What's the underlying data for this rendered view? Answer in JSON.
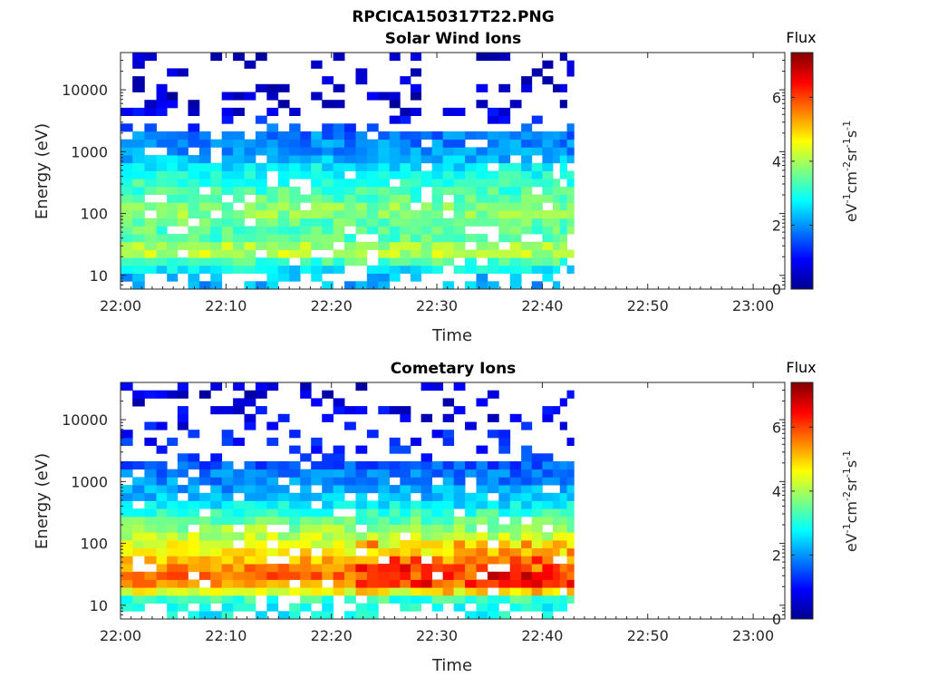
{
  "figure": {
    "title": "RPCICA150317T22.PNG",
    "colormap": "jet"
  },
  "chart_data": [
    {
      "type": "heatmap",
      "title": "Solar Wind Ions",
      "xlabel": "Time",
      "ylabel": "Energy (eV)",
      "y_scale": "log",
      "ylim": [
        6,
        40000
      ],
      "xlim": [
        "22:00",
        "23:03"
      ],
      "x_ticks": [
        "22:00",
        "22:10",
        "22:20",
        "22:30",
        "22:40",
        "22:50",
        "23:00"
      ],
      "y_ticks": [
        "10",
        "100",
        "1000",
        "10000"
      ],
      "colorbar": {
        "title": "Flux",
        "label": "eV-1cm-2sr-1s-1",
        "range": [
          0,
          7.4
        ],
        "ticks": [
          "0",
          "2",
          "4",
          "6"
        ]
      },
      "data_extent_x": [
        "22:00",
        "22:43"
      ],
      "time_bins_start_min": [
        0,
        3.4,
        6.4,
        9.6,
        12.8,
        16,
        19.1,
        22.3,
        25.5,
        28.5,
        31.6,
        34.8,
        38,
        41
      ],
      "energy_profile": [
        {
          "energy_eV": 7,
          "flux": 2.2
        },
        {
          "energy_eV": 10,
          "flux": 2.3
        },
        {
          "energy_eV": 15,
          "flux": 3.0
        },
        {
          "energy_eV": 25,
          "flux": 4.4
        },
        {
          "energy_eV": 40,
          "flux": 3.4
        },
        {
          "energy_eV": 70,
          "flux": 3.4
        },
        {
          "energy_eV": 110,
          "flux": 3.9
        },
        {
          "energy_eV": 180,
          "flux": 3.4
        },
        {
          "energy_eV": 300,
          "flux": 3.2
        },
        {
          "energy_eV": 500,
          "flux": 2.8
        },
        {
          "energy_eV": 1000,
          "flux": 2.0
        },
        {
          "energy_eV": 2000,
          "flux": 1.8
        },
        {
          "energy_eV": 5000,
          "flux": 0.5
        },
        {
          "energy_eV": 20000,
          "flux": 0.4
        }
      ]
    },
    {
      "type": "heatmap",
      "title": "Cometary Ions",
      "xlabel": "Time",
      "ylabel": "Energy (eV)",
      "y_scale": "log",
      "ylim": [
        6,
        40000
      ],
      "xlim": [
        "22:00",
        "23:03"
      ],
      "x_ticks": [
        "22:00",
        "22:10",
        "22:20",
        "22:30",
        "22:40",
        "22:50",
        "23:00"
      ],
      "y_ticks": [
        "10",
        "100",
        "1000",
        "10000"
      ],
      "colorbar": {
        "title": "Flux",
        "label": "eV-1cm-2sr-1s-1",
        "range": [
          0,
          7.4
        ],
        "ticks": [
          "0",
          "2",
          "4",
          "6"
        ]
      },
      "data_extent_x": [
        "22:00",
        "22:43"
      ],
      "time_bins_start_min": [
        0,
        3.4,
        6.4,
        9.6,
        12.8,
        16,
        19.1,
        22.3,
        25.5,
        28.5,
        31.6,
        34.8,
        38,
        41
      ],
      "energy_profile": [
        {
          "energy_eV": 8,
          "flux": 2.8
        },
        {
          "energy_eV": 12,
          "flux": 3.0
        },
        {
          "energy_eV": 18,
          "flux": 4.8
        },
        {
          "energy_eV": 25,
          "flux": 5.8
        },
        {
          "energy_eV": 35,
          "flux": 5.6
        },
        {
          "energy_eV": 60,
          "flux": 5.0
        },
        {
          "energy_eV": 100,
          "flux": 4.4
        },
        {
          "energy_eV": 180,
          "flux": 3.8
        },
        {
          "energy_eV": 300,
          "flux": 3.2
        },
        {
          "energy_eV": 550,
          "flux": 2.3
        },
        {
          "energy_eV": 2500,
          "flux": 1.4
        },
        {
          "energy_eV": 10000,
          "flux": 0.8
        },
        {
          "energy_eV": 30000,
          "flux": 0.6
        }
      ]
    }
  ]
}
